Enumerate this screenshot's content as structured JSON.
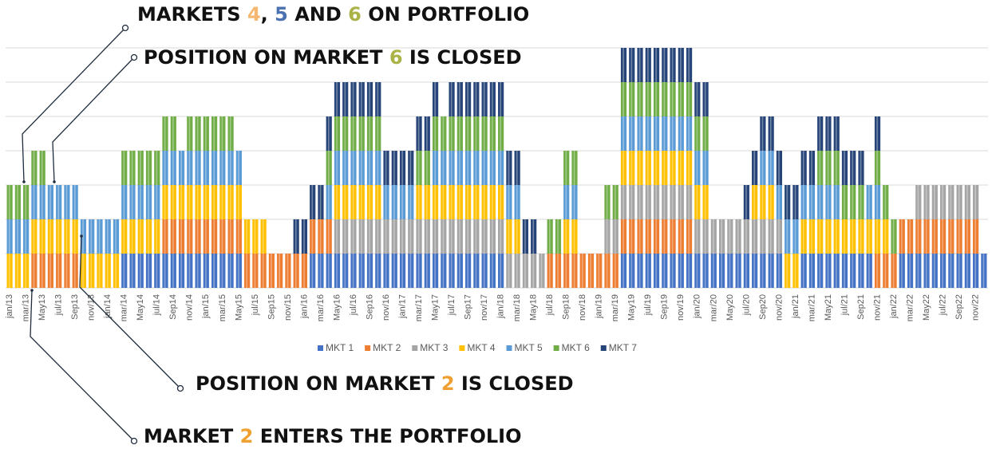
{
  "chart_data": {
    "type": "stacked_bar",
    "categories": [
      "jan/13",
      null,
      "mar/13",
      null,
      "May13",
      null,
      "jul/13",
      null,
      "Sep13",
      null,
      "nov/13",
      null,
      "jan/14",
      null,
      "mar/14",
      null,
      "May14",
      null,
      "jul/14",
      null,
      "Sep14",
      null,
      "nov/14",
      null,
      "jan/15",
      null,
      "mar/15",
      null,
      "May15",
      null,
      "jul/15",
      null,
      "Sep15",
      null,
      "nov/15",
      null,
      "jan/16",
      null,
      "mar/16",
      null,
      "May16",
      null,
      "jul/16",
      null,
      "Sep16",
      null,
      "nov/16",
      null,
      "jan/17",
      null,
      "mar/17",
      null,
      "May17",
      null,
      "jul/17",
      null,
      "Sep17",
      null,
      "nov/17",
      null,
      "jan/18",
      null,
      "mar/18",
      null,
      "May18",
      null,
      "jul/18",
      null,
      "Sep18",
      null,
      "nov/18",
      null,
      "jan/19",
      null,
      "mar/19",
      null,
      "May19",
      null,
      "jul/19",
      null,
      "Sep19",
      null,
      "nov/19",
      null,
      "jan/20",
      null,
      "mar/20",
      null,
      "May20",
      null,
      "jul/20",
      null,
      "Sep20",
      null,
      "nov/20",
      null,
      "jan/21",
      null,
      "mar/21",
      null,
      "May21",
      null,
      "jul/21",
      null,
      "Sep21",
      null,
      "nov/21",
      null,
      "jan/22",
      null,
      "mar/22",
      null,
      "May22",
      null,
      "jul/22",
      null,
      "Sep22",
      null,
      "nov/22",
      null
    ],
    "series": [
      {
        "name": "MKT 1",
        "color": "#4472c4",
        "values": [
          0,
          0,
          0,
          0,
          0,
          0,
          0,
          0,
          0,
          0,
          0,
          0,
          0,
          0,
          1,
          1,
          1,
          1,
          1,
          1,
          1,
          1,
          1,
          1,
          1,
          1,
          1,
          1,
          1,
          0,
          0,
          0,
          0,
          0,
          0,
          0,
          0,
          1,
          1,
          1,
          1,
          1,
          1,
          1,
          1,
          1,
          1,
          1,
          1,
          1,
          1,
          1,
          1,
          1,
          1,
          1,
          1,
          1,
          1,
          1,
          1,
          0,
          0,
          0,
          0,
          0,
          0,
          0,
          0,
          0,
          0,
          0,
          0,
          0,
          0,
          1,
          1,
          1,
          1,
          1,
          1,
          1,
          1,
          1,
          1,
          1,
          1,
          1,
          1,
          1,
          1,
          1,
          1,
          1,
          1,
          0,
          0,
          1,
          1,
          1,
          1,
          1,
          1,
          1,
          1,
          1,
          0,
          0,
          0,
          1,
          1,
          1,
          1,
          1,
          1,
          1,
          1,
          1,
          1,
          1
        ]
      },
      {
        "name": "MKT 2",
        "color": "#ed7d31",
        "values": [
          0,
          0,
          0,
          1,
          1,
          1,
          1,
          1,
          1,
          0,
          0,
          0,
          0,
          0,
          0,
          0,
          0,
          0,
          0,
          1,
          1,
          1,
          1,
          1,
          1,
          1,
          1,
          1,
          1,
          1,
          1,
          1,
          1,
          1,
          1,
          1,
          1,
          1,
          1,
          1,
          0,
          0,
          0,
          0,
          0,
          0,
          0,
          0,
          0,
          0,
          0,
          0,
          0,
          0,
          0,
          0,
          0,
          0,
          0,
          0,
          0,
          0,
          0,
          0,
          0,
          0,
          1,
          1,
          1,
          1,
          1,
          1,
          1,
          1,
          1,
          1,
          1,
          1,
          1,
          1,
          1,
          1,
          1,
          1,
          0,
          0,
          0,
          0,
          0,
          0,
          0,
          0,
          0,
          0,
          0,
          0,
          0,
          0,
          0,
          0,
          0,
          0,
          0,
          0,
          0,
          0,
          1,
          1,
          1,
          1,
          1,
          1,
          1,
          1,
          1,
          1,
          1,
          1,
          1,
          0
        ]
      },
      {
        "name": "MKT 3",
        "color": "#a5a5a5",
        "values": [
          0,
          0,
          0,
          0,
          0,
          0,
          0,
          0,
          0,
          0,
          0,
          0,
          0,
          0,
          0,
          0,
          0,
          0,
          0,
          0,
          0,
          0,
          0,
          0,
          0,
          0,
          0,
          0,
          0,
          0,
          0,
          0,
          0,
          0,
          0,
          0,
          0,
          0,
          0,
          0,
          1,
          1,
          1,
          1,
          1,
          1,
          1,
          1,
          1,
          1,
          1,
          1,
          1,
          1,
          1,
          1,
          1,
          1,
          1,
          1,
          1,
          1,
          1,
          1,
          1,
          1,
          0,
          0,
          0,
          0,
          0,
          0,
          0,
          1,
          1,
          1,
          1,
          1,
          1,
          1,
          1,
          1,
          1,
          1,
          1,
          1,
          1,
          1,
          1,
          1,
          1,
          1,
          1,
          1,
          1,
          0,
          0,
          0,
          0,
          0,
          0,
          0,
          0,
          0,
          0,
          0,
          0,
          0,
          0,
          0,
          0,
          1,
          1,
          1,
          1,
          1,
          1,
          1,
          1,
          0
        ]
      },
      {
        "name": "MKT 4",
        "color": "#ffc000",
        "values": [
          1,
          1,
          1,
          1,
          1,
          1,
          1,
          1,
          1,
          1,
          1,
          1,
          1,
          1,
          1,
          1,
          1,
          1,
          1,
          1,
          1,
          1,
          1,
          1,
          1,
          1,
          1,
          1,
          1,
          1,
          1,
          1,
          0,
          0,
          0,
          0,
          0,
          0,
          0,
          0,
          1,
          1,
          1,
          1,
          1,
          1,
          0,
          0,
          0,
          0,
          1,
          1,
          1,
          1,
          1,
          1,
          1,
          1,
          1,
          1,
          1,
          1,
          1,
          0,
          0,
          0,
          0,
          0,
          1,
          1,
          0,
          0,
          0,
          0,
          0,
          1,
          1,
          1,
          1,
          1,
          1,
          1,
          1,
          1,
          1,
          1,
          0,
          0,
          0,
          0,
          0,
          1,
          1,
          1,
          0,
          1,
          1,
          1,
          1,
          1,
          1,
          1,
          1,
          1,
          1,
          1,
          1,
          1,
          0,
          0,
          0,
          0,
          0,
          0,
          0,
          0,
          0,
          0,
          0,
          0
        ]
      },
      {
        "name": "MKT 5",
        "color": "#5b9bd5",
        "values": [
          1,
          1,
          1,
          1,
          1,
          1,
          1,
          1,
          1,
          1,
          1,
          1,
          1,
          1,
          1,
          1,
          1,
          1,
          1,
          1,
          1,
          1,
          1,
          1,
          1,
          1,
          1,
          1,
          1,
          0,
          0,
          0,
          0,
          0,
          0,
          0,
          0,
          0,
          0,
          1,
          1,
          1,
          1,
          1,
          1,
          1,
          1,
          1,
          1,
          1,
          0,
          0,
          1,
          1,
          1,
          1,
          1,
          1,
          1,
          1,
          1,
          1,
          1,
          0,
          0,
          0,
          0,
          0,
          1,
          1,
          0,
          0,
          0,
          0,
          0,
          1,
          1,
          1,
          1,
          1,
          1,
          1,
          1,
          1,
          1,
          1,
          0,
          0,
          0,
          0,
          0,
          0,
          1,
          1,
          1,
          1,
          1,
          1,
          1,
          1,
          1,
          1,
          0,
          0,
          0,
          1,
          1,
          0,
          0,
          0,
          0,
          0,
          0,
          0,
          0,
          0,
          0,
          0,
          0,
          0
        ]
      },
      {
        "name": "MKT 6",
        "color": "#70ad47",
        "values": [
          1,
          1,
          1,
          1,
          1,
          0,
          0,
          0,
          0,
          0,
          0,
          0,
          0,
          0,
          1,
          1,
          1,
          1,
          1,
          1,
          1,
          0,
          1,
          1,
          1,
          1,
          1,
          1,
          0,
          0,
          0,
          0,
          0,
          0,
          0,
          0,
          0,
          0,
          0,
          1,
          1,
          1,
          1,
          1,
          1,
          1,
          0,
          0,
          0,
          0,
          1,
          1,
          1,
          1,
          1,
          1,
          1,
          1,
          1,
          1,
          1,
          0,
          0,
          0,
          0,
          0,
          1,
          1,
          1,
          1,
          0,
          0,
          0,
          1,
          1,
          1,
          1,
          1,
          1,
          1,
          1,
          1,
          1,
          1,
          1,
          1,
          0,
          0,
          0,
          0,
          0,
          0,
          0,
          0,
          0,
          0,
          0,
          0,
          0,
          1,
          1,
          1,
          1,
          1,
          1,
          0,
          1,
          1,
          1,
          0,
          0,
          0,
          0,
          0,
          0,
          0,
          0,
          0,
          0,
          0
        ]
      },
      {
        "name": "MKT 7",
        "color": "#264478",
        "values": [
          0,
          0,
          0,
          0,
          0,
          0,
          0,
          0,
          0,
          0,
          0,
          0,
          0,
          0,
          0,
          0,
          0,
          0,
          0,
          0,
          0,
          0,
          0,
          0,
          0,
          0,
          0,
          0,
          0,
          0,
          0,
          0,
          0,
          0,
          0,
          1,
          1,
          1,
          1,
          1,
          1,
          1,
          1,
          1,
          1,
          1,
          1,
          1,
          1,
          1,
          1,
          1,
          1,
          0,
          1,
          1,
          1,
          1,
          1,
          1,
          1,
          1,
          1,
          1,
          1,
          0,
          0,
          0,
          0,
          0,
          0,
          0,
          0,
          0,
          0,
          1,
          1,
          1,
          1,
          1,
          1,
          1,
          1,
          1,
          1,
          1,
          0,
          0,
          0,
          0,
          1,
          1,
          1,
          1,
          1,
          1,
          1,
          1,
          1,
          1,
          1,
          1,
          1,
          1,
          1,
          0,
          1,
          0,
          0,
          0,
          0,
          0,
          0,
          0,
          0,
          0,
          0,
          0,
          0,
          0
        ]
      }
    ],
    "ylim": [
      0,
      7
    ],
    "yticks": [
      0,
      1,
      2,
      3,
      4,
      5,
      6,
      7
    ],
    "grid": true,
    "legend": "bottom",
    "annotations": [
      {
        "parts": [
          "MARKETS ",
          {
            "text": "4",
            "color": "#f5b870"
          },
          ", ",
          {
            "text": "5",
            "color": "#4a72b0"
          },
          " AND ",
          {
            "text": "6",
            "color": "#a9b347"
          },
          " ON PORTFOLIO"
        ]
      },
      {
        "parts": [
          "POSITION ON MARKET ",
          {
            "text": "6",
            "color": "#a9b347"
          },
          " IS CLOSED"
        ]
      },
      {
        "parts": [
          "POSITION ON MARKET ",
          {
            "text": "2",
            "color": "#f0a030"
          },
          " IS CLOSED"
        ]
      },
      {
        "parts": [
          "MARKET ",
          {
            "text": "2",
            "color": "#f0a030"
          },
          " ENTERS THE PORTFOLIO"
        ]
      }
    ]
  }
}
